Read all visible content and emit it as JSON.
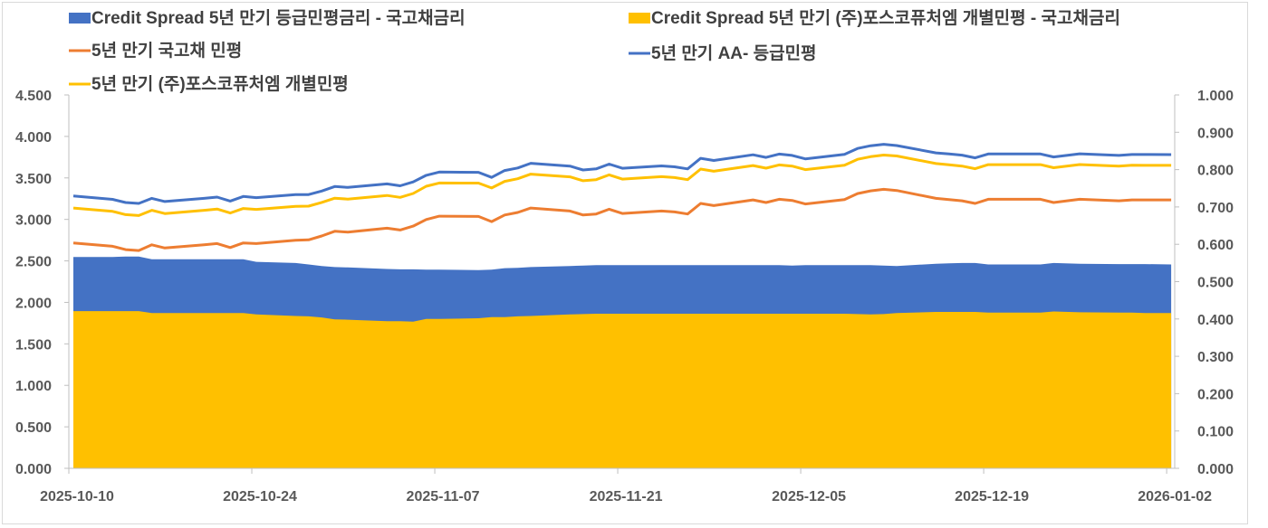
{
  "chart_data": {
    "type": "line+area",
    "legend_position": "top",
    "grid": false,
    "left_axis": {
      "ylim": [
        0,
        4.5
      ],
      "ticks": [
        "0.000",
        "0.500",
        "1.000",
        "1.500",
        "2.000",
        "2.500",
        "3.000",
        "3.500",
        "4.000",
        "4.500"
      ]
    },
    "right_axis": {
      "ylim": [
        0,
        1.0
      ],
      "ticks": [
        "0.000",
        "0.100",
        "0.200",
        "0.300",
        "0.400",
        "0.500",
        "0.600",
        "0.700",
        "0.800",
        "0.900",
        "1.000"
      ]
    },
    "x_tick_labels": [
      "2025-10-10",
      "2025-10-24",
      "2025-11-07",
      "2025-11-21",
      "2025-12-05",
      "2025-12-19",
      "2026-01-02"
    ],
    "dates": [
      "2025-10-10",
      "2025-10-13",
      "2025-10-14",
      "2025-10-15",
      "2025-10-16",
      "2025-10-17",
      "2025-10-20",
      "2025-10-21",
      "2025-10-22",
      "2025-10-23",
      "2025-10-24",
      "2025-10-27",
      "2025-10-28",
      "2025-10-29",
      "2025-10-30",
      "2025-10-31",
      "2025-11-03",
      "2025-11-04",
      "2025-11-05",
      "2025-11-06",
      "2025-11-07",
      "2025-11-10",
      "2025-11-11",
      "2025-11-12",
      "2025-11-13",
      "2025-11-14",
      "2025-11-17",
      "2025-11-18",
      "2025-11-19",
      "2025-11-20",
      "2025-11-21",
      "2025-11-24",
      "2025-11-25",
      "2025-11-26",
      "2025-11-27",
      "2025-11-28",
      "2025-12-01",
      "2025-12-02",
      "2025-12-03",
      "2025-12-04",
      "2025-12-05",
      "2025-12-08",
      "2025-12-09",
      "2025-12-10",
      "2025-12-11",
      "2025-12-12",
      "2025-12-15",
      "2025-12-16",
      "2025-12-17",
      "2025-12-18",
      "2025-12-19",
      "2025-12-22",
      "2025-12-23",
      "2025-12-24",
      "2025-12-26",
      "2025-12-29",
      "2025-12-30",
      "2025-12-31",
      "2026-01-02"
    ],
    "series": [
      {
        "name": "Credit Spread 5년 만기 등급민평금리 - 국고채금리",
        "type": "area",
        "axis": "right",
        "color": "#4472C4",
        "values": [
          0.566,
          0.566,
          0.567,
          0.567,
          0.56,
          0.56,
          0.56,
          0.56,
          0.56,
          0.56,
          0.553,
          0.55,
          0.546,
          0.542,
          0.539,
          0.538,
          0.534,
          0.533,
          0.533,
          0.532,
          0.532,
          0.531,
          0.532,
          0.536,
          0.537,
          0.539,
          0.542,
          0.543,
          0.544,
          0.544,
          0.544,
          0.544,
          0.544,
          0.544,
          0.544,
          0.544,
          0.544,
          0.544,
          0.544,
          0.543,
          0.544,
          0.544,
          0.544,
          0.544,
          0.543,
          0.542,
          0.548,
          0.549,
          0.55,
          0.55,
          0.546,
          0.546,
          0.546,
          0.55,
          0.548,
          0.547,
          0.547,
          0.547,
          0.546
        ]
      },
      {
        "name": "Credit Spread 5년 만기 (주)포스코퓨처엠 개별민평 - 국고채금리",
        "type": "area",
        "axis": "right",
        "color": "#FFC000",
        "values": [
          0.421,
          0.421,
          0.421,
          0.421,
          0.416,
          0.416,
          0.416,
          0.416,
          0.416,
          0.416,
          0.412,
          0.408,
          0.407,
          0.404,
          0.399,
          0.398,
          0.394,
          0.394,
          0.393,
          0.4,
          0.4,
          0.402,
          0.405,
          0.405,
          0.407,
          0.408,
          0.412,
          0.413,
          0.414,
          0.414,
          0.414,
          0.414,
          0.414,
          0.414,
          0.414,
          0.414,
          0.414,
          0.414,
          0.414,
          0.414,
          0.414,
          0.414,
          0.413,
          0.412,
          0.413,
          0.416,
          0.419,
          0.419,
          0.419,
          0.419,
          0.417,
          0.417,
          0.417,
          0.42,
          0.418,
          0.417,
          0.417,
          0.416,
          0.416
        ]
      },
      {
        "name": "5년 만기 국고채 민평",
        "type": "line",
        "axis": "left",
        "color": "#ED7D31",
        "values": [
          2.716,
          2.676,
          2.636,
          2.625,
          2.694,
          2.655,
          2.694,
          2.709,
          2.661,
          2.716,
          2.709,
          2.749,
          2.753,
          2.8,
          2.857,
          2.847,
          2.894,
          2.872,
          2.919,
          2.999,
          3.039,
          3.036,
          2.974,
          3.053,
          3.083,
          3.137,
          3.101,
          3.053,
          3.065,
          3.123,
          3.072,
          3.101,
          3.09,
          3.065,
          3.192,
          3.166,
          3.235,
          3.203,
          3.243,
          3.228,
          3.186,
          3.239,
          3.311,
          3.344,
          3.362,
          3.348,
          3.254,
          3.239,
          3.224,
          3.192,
          3.243,
          3.243,
          3.243,
          3.203,
          3.243,
          3.224,
          3.235,
          3.235,
          3.235
        ]
      },
      {
        "name": "5년 만기 AA-  등급민평",
        "type": "line",
        "axis": "left",
        "color": "#4472C4",
        "values": [
          3.282,
          3.242,
          3.203,
          3.192,
          3.254,
          3.215,
          3.254,
          3.269,
          3.221,
          3.276,
          3.262,
          3.299,
          3.299,
          3.342,
          3.396,
          3.385,
          3.428,
          3.405,
          3.452,
          3.531,
          3.571,
          3.567,
          3.506,
          3.589,
          3.62,
          3.676,
          3.643,
          3.596,
          3.609,
          3.667,
          3.616,
          3.645,
          3.634,
          3.609,
          3.736,
          3.71,
          3.779,
          3.747,
          3.787,
          3.771,
          3.73,
          3.783,
          3.855,
          3.888,
          3.905,
          3.89,
          3.802,
          3.788,
          3.774,
          3.742,
          3.789,
          3.789,
          3.789,
          3.753,
          3.791,
          3.771,
          3.782,
          3.782,
          3.781
        ]
      },
      {
        "name": "5년 만기 (주)포스코퓨처엠 개별민평",
        "type": "line",
        "axis": "left",
        "color": "#FFC000",
        "values": [
          3.137,
          3.097,
          3.057,
          3.046,
          3.11,
          3.071,
          3.11,
          3.125,
          3.077,
          3.132,
          3.121,
          3.157,
          3.16,
          3.204,
          3.256,
          3.245,
          3.288,
          3.266,
          3.312,
          3.399,
          3.439,
          3.438,
          3.379,
          3.458,
          3.49,
          3.545,
          3.513,
          3.466,
          3.479,
          3.537,
          3.486,
          3.515,
          3.504,
          3.479,
          3.606,
          3.58,
          3.649,
          3.617,
          3.657,
          3.642,
          3.6,
          3.653,
          3.724,
          3.756,
          3.775,
          3.764,
          3.673,
          3.658,
          3.643,
          3.611,
          3.66,
          3.66,
          3.66,
          3.623,
          3.661,
          3.641,
          3.652,
          3.651,
          3.651
        ]
      }
    ]
  }
}
